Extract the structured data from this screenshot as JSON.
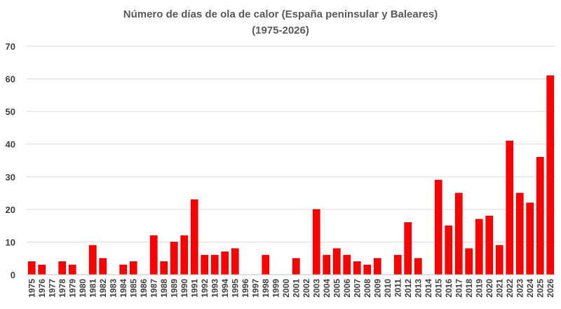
{
  "chart_data": {
    "type": "bar",
    "title": "Número de días de ola de calor (España peninsular y Baleares)",
    "subtitle": "(1975-2026)",
    "xlabel": "",
    "ylabel": "",
    "ylim": [
      0,
      70
    ],
    "yticks": [
      0,
      10,
      20,
      30,
      40,
      50,
      60,
      70
    ],
    "grid": true,
    "legend": "none",
    "bar_color": "#ff0000",
    "bar_edge_color": "#c00000",
    "categories": [
      "1975",
      "1976",
      "1977",
      "1978",
      "1979",
      "1980",
      "1981",
      "1982",
      "1983",
      "1984",
      "1985",
      "1986",
      "1987",
      "1988",
      "1989",
      "1990",
      "1991",
      "1992",
      "1993",
      "1994",
      "1995",
      "1996",
      "1997",
      "1998",
      "1999",
      "2000",
      "2001",
      "2002",
      "2003",
      "2004",
      "2005",
      "2006",
      "2007",
      "2008",
      "2009",
      "2010",
      "2011",
      "2012",
      "2013",
      "2014",
      "2015",
      "2016",
      "2017",
      "2018",
      "2019",
      "2020",
      "2021",
      "2022",
      "2023",
      "2024",
      "2025",
      "2026"
    ],
    "values": [
      4,
      3,
      0,
      4,
      3,
      0,
      9,
      5,
      0,
      3,
      4,
      0,
      12,
      4,
      10,
      12,
      23,
      6,
      6,
      7,
      8,
      0,
      0,
      6,
      0,
      0,
      5,
      0,
      20,
      6,
      8,
      6,
      4,
      3,
      5,
      0,
      6,
      16,
      5,
      0,
      29,
      15,
      25,
      8,
      17,
      18,
      9,
      41,
      25,
      22,
      36,
      61
    ]
  }
}
